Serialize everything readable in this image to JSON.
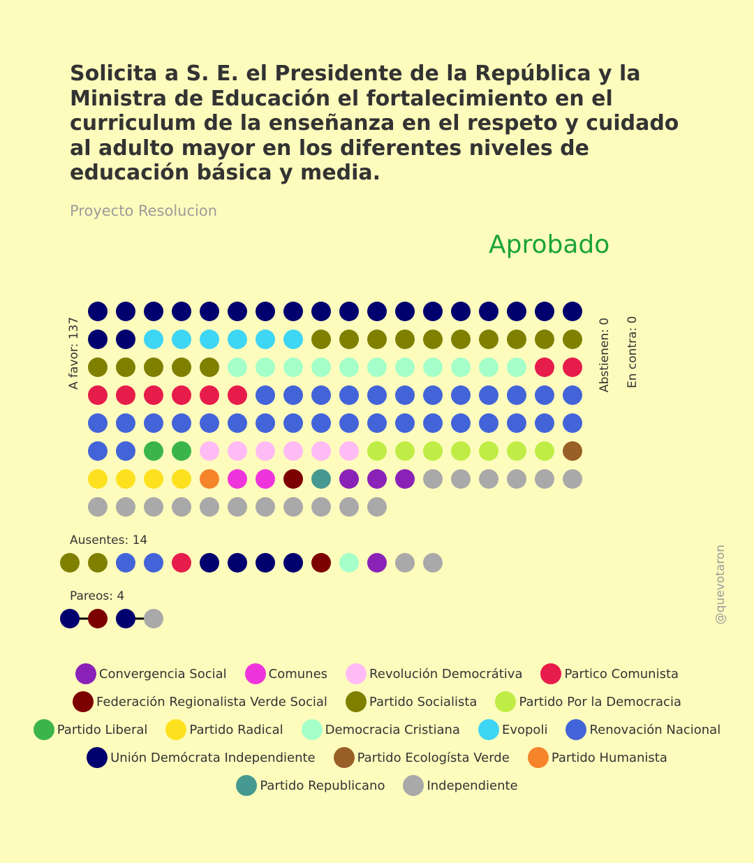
{
  "title": "Solicita a S. E. el Presidente de la República y la Ministra de Educación el fortalecimiento en el curriculum de la enseñanza en el respeto y cuidado al adulto mayor en los diferentes niveles de educación básica y media.",
  "subtitle": "Proyecto Resolucion",
  "result": "Aprobado",
  "result_color": "#1aa33a",
  "watermark": "@quevotaron",
  "parties": [
    {
      "key": "CS",
      "name": "Convergencia Social",
      "color": "#8b22b8"
    },
    {
      "key": "COM",
      "name": "Comunes",
      "color": "#ee35dc"
    },
    {
      "key": "RD",
      "name": "Revolución Democrátiva",
      "color": "#ffbcf4"
    },
    {
      "key": "PC",
      "name": "Partico Comunista",
      "color": "#e61c4b"
    },
    {
      "key": "FRVS",
      "name": "Federación Regionalista Verde Social",
      "color": "#7d0000"
    },
    {
      "key": "PS",
      "name": "Partido Socialista",
      "color": "#7f7f00"
    },
    {
      "key": "PPD",
      "name": "Partido Por la Democracia",
      "color": "#bfed45"
    },
    {
      "key": "PL",
      "name": "Partido Liberal",
      "color": "#3bb54a"
    },
    {
      "key": "PR",
      "name": "Partido Radical",
      "color": "#fde11f"
    },
    {
      "key": "DC",
      "name": "Democracia Cristiana",
      "color": "#a5ffc9"
    },
    {
      "key": "EVO",
      "name": "Evopoli",
      "color": "#3fd5f5"
    },
    {
      "key": "RN",
      "name": "Renovación Nacional",
      "color": "#4364d8"
    },
    {
      "key": "UDI",
      "name": "Unión Demócrata Independiente",
      "color": "#00006f"
    },
    {
      "key": "PEV",
      "name": "Partido Ecologísta Verde",
      "color": "#9a5f26"
    },
    {
      "key": "PH",
      "name": "Partido Humanista",
      "color": "#f5842b"
    },
    {
      "key": "REP",
      "name": "Partido Republicano",
      "color": "#469990"
    },
    {
      "key": "IND",
      "name": "Independiente",
      "color": "#a9a9a9"
    }
  ],
  "legend_rows": [
    [
      "CS",
      "COM",
      "RD",
      "PC"
    ],
    [
      "FRVS",
      "PS",
      "PPD"
    ],
    [
      "PL",
      "PR",
      "DC",
      "EVO",
      "RN"
    ],
    [
      "UDI",
      "PEV",
      "PH"
    ],
    [
      "REP",
      "IND"
    ]
  ],
  "chart_data": {
    "type": "waffle",
    "a_favor": {
      "label": "A favor: 137",
      "count": 137,
      "columns": 18,
      "seats": [
        {
          "party": "UDI",
          "count": 20
        },
        {
          "party": "EVO",
          "count": 6
        },
        {
          "party": "PS",
          "count": 15
        },
        {
          "party": "DC",
          "count": 11
        },
        {
          "party": "PC",
          "count": 8
        },
        {
          "party": "RN",
          "count": 32
        },
        {
          "party": "PL",
          "count": 2
        },
        {
          "party": "RD",
          "count": 6
        },
        {
          "party": "PPD",
          "count": 7
        },
        {
          "party": "PEV",
          "count": 1
        },
        {
          "party": "PR",
          "count": 4
        },
        {
          "party": "PH",
          "count": 1
        },
        {
          "party": "COM",
          "count": 2
        },
        {
          "party": "FRVS",
          "count": 1
        },
        {
          "party": "REP",
          "count": 1
        },
        {
          "party": "CS",
          "count": 3
        },
        {
          "party": "IND",
          "count": 17
        }
      ]
    },
    "abstienen": {
      "label": "Abstienen: 0",
      "count": 0
    },
    "en_contra": {
      "label": "En contra: 0",
      "count": 0
    },
    "ausentes": {
      "label": "Ausentes: 14",
      "count": 14,
      "seats": [
        "PS",
        "PS",
        "RN",
        "RN",
        "PC",
        "UDI",
        "UDI",
        "UDI",
        "UDI",
        "FRVS",
        "DC",
        "CS",
        "IND",
        "IND"
      ]
    },
    "pareos": {
      "label": "Pareos: 4",
      "count": 4,
      "pairs": [
        [
          "UDI",
          "FRVS"
        ],
        [
          "UDI",
          "IND"
        ]
      ]
    }
  }
}
